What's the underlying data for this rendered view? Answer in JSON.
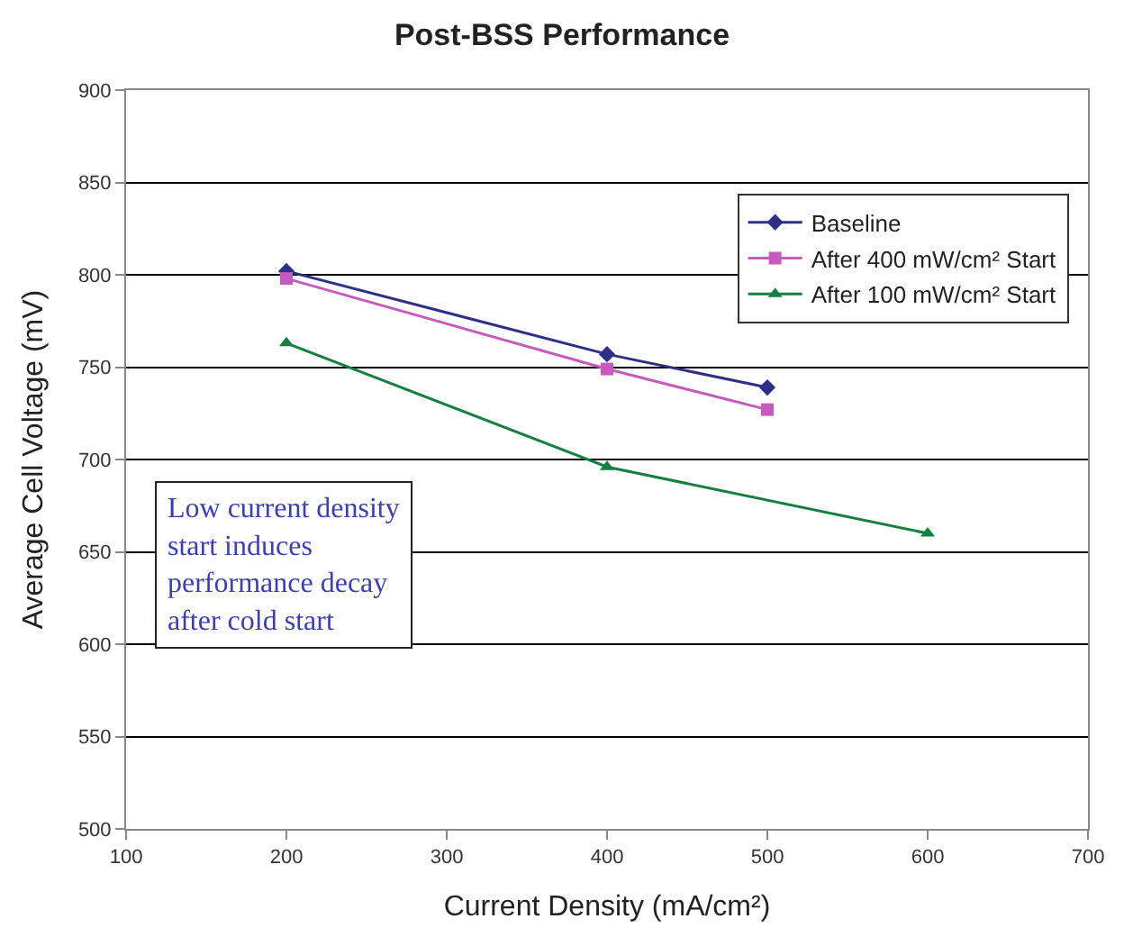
{
  "chart_data": {
    "type": "line",
    "title": "Post-BSS Performance",
    "xlabel": "Current Density (mA/cm²)",
    "ylabel": "Average Cell Voltage (mV)",
    "xlim": [
      100,
      700
    ],
    "xticks": [
      100,
      200,
      300,
      400,
      500,
      600,
      700
    ],
    "ylim": [
      500,
      900
    ],
    "yticks": [
      500,
      550,
      600,
      650,
      700,
      750,
      800,
      850,
      900
    ],
    "grid": "y",
    "legend": "top right",
    "line_style": "solid",
    "annotations": [
      "Low current density\nstart induces\nperformance decay\nafter cold start"
    ],
    "series": [
      {
        "name": "Baseline",
        "color": "#2e2f86",
        "marker": "diamond",
        "x": [
          200,
          400,
          500
        ],
        "values": [
          802,
          757,
          739
        ]
      },
      {
        "name": "After 400 mW/cm² Start",
        "color": "#c75bbd",
        "marker": "square",
        "x": [
          200,
          400,
          500
        ],
        "values": [
          798,
          749,
          727
        ]
      },
      {
        "name": "After 100 mW/cm² Start",
        "color": "#138040",
        "marker": "triangle",
        "x": [
          200,
          400,
          600
        ],
        "values": [
          763,
          696,
          660
        ]
      }
    ]
  }
}
